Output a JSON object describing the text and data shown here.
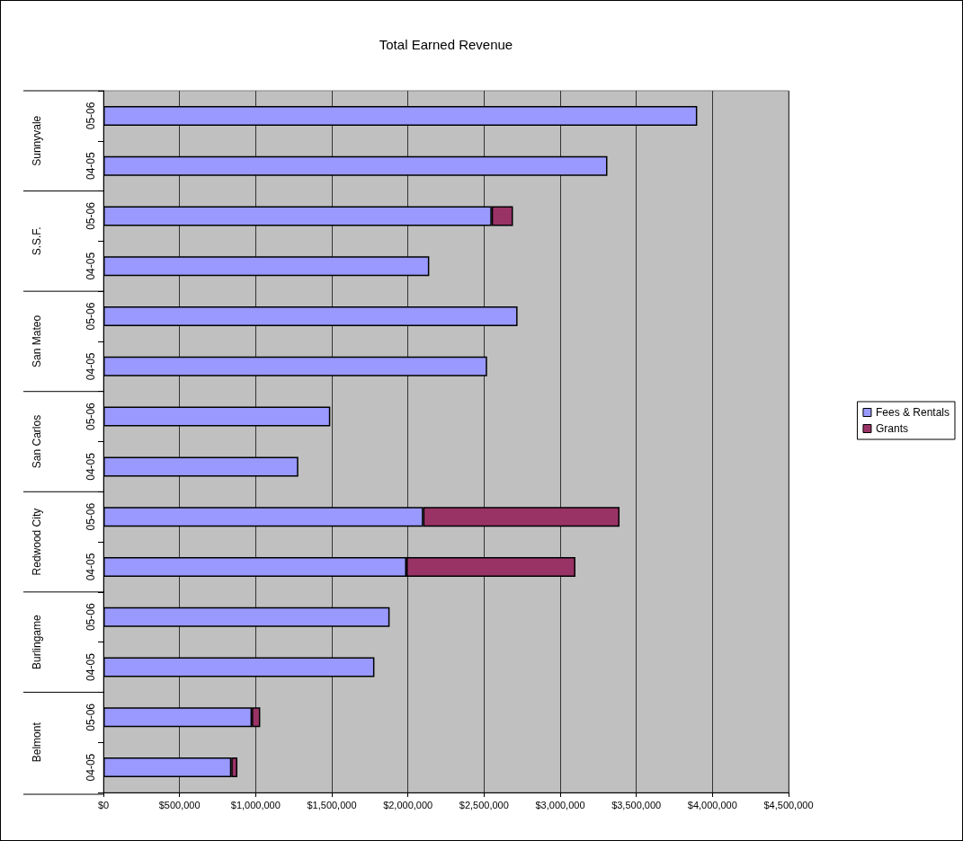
{
  "chart_data": {
    "type": "bar",
    "title": "Total Earned Revenue",
    "orientation": "horizontal",
    "stacked": true,
    "categories": [
      "05-06",
      "04-05",
      "05-06",
      "04-05",
      "05-06",
      "04-05",
      "05-06",
      "04-05",
      "05-06",
      "04-05",
      "05-06",
      "04-05",
      "05-06",
      "04-05"
    ],
    "annotations": [
      "Sunnyvale",
      "S.S.F.",
      "San Mateo",
      "San Carlos",
      "Redwood City",
      "Burlingame",
      "Belmont"
    ],
    "series": [
      {
        "name": "Fees & Rentals",
        "color": "#9999ff",
        "values": [
          3900000,
          3310000,
          2550000,
          2140000,
          2720000,
          2520000,
          1490000,
          1280000,
          2100000,
          1990000,
          1880000,
          1780000,
          975000,
          840000
        ]
      },
      {
        "name": "Grants",
        "color": "#993366",
        "values": [
          null,
          null,
          140000,
          null,
          null,
          null,
          null,
          null,
          1290000,
          1110000,
          null,
          null,
          55000,
          40000
        ]
      }
    ],
    "xlim": [
      0,
      4500000
    ],
    "xticks": [
      {
        "value": 0,
        "label": "$0"
      },
      {
        "value": 500000,
        "label": "$500,000"
      },
      {
        "value": 1000000,
        "label": "$1,000,000"
      },
      {
        "value": 1500000,
        "label": "$1,500,000"
      },
      {
        "value": 2000000,
        "label": "$2,000,000"
      },
      {
        "value": 2500000,
        "label": "$2,500,000"
      },
      {
        "value": 3000000,
        "label": "$3,000,000"
      },
      {
        "value": 3500000,
        "label": "$3,500,000"
      },
      {
        "value": 4000000,
        "label": "$4,000,000"
      },
      {
        "value": 4500000,
        "label": "$4,500,000"
      }
    ],
    "grid": "x",
    "legend": "right"
  }
}
